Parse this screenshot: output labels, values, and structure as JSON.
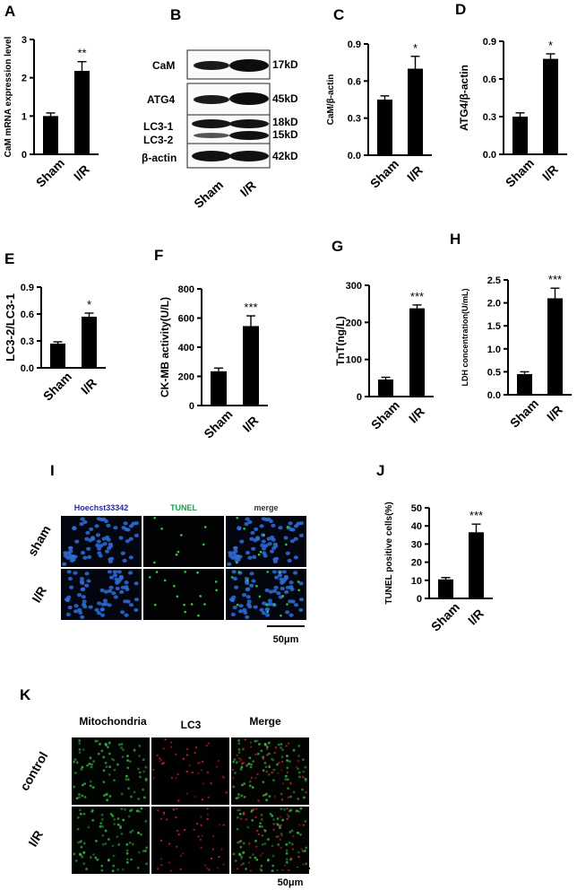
{
  "panels": {
    "A": "A",
    "B": "B",
    "C": "C",
    "D": "D",
    "E": "E",
    "F": "F",
    "G": "G",
    "H": "H",
    "I": "I",
    "J": "J",
    "K": "K"
  },
  "chart_data": [
    {
      "id": "A",
      "type": "bar",
      "categories": [
        "Sham",
        "I/R"
      ],
      "values": [
        1.0,
        2.18
      ],
      "errors": [
        0.08,
        0.24
      ],
      "ylabel": "CaM mRNA expression level",
      "ylim": [
        0,
        3
      ],
      "yticks": [
        0,
        1,
        2,
        3
      ],
      "tick_labels": [
        "0",
        "1",
        "2",
        "3"
      ],
      "significance": "**"
    },
    {
      "id": "C",
      "type": "bar",
      "categories": [
        "Sham",
        "I/R"
      ],
      "values": [
        0.45,
        0.7
      ],
      "errors": [
        0.03,
        0.1
      ],
      "ylabel": "CaM/β-actin",
      "ylim": [
        0,
        0.9
      ],
      "yticks": [
        0,
        0.3,
        0.6,
        0.9
      ],
      "tick_labels": [
        "0.0",
        "0.3",
        "0.6",
        "0.9"
      ],
      "significance": "*"
    },
    {
      "id": "D",
      "type": "bar",
      "categories": [
        "Sham",
        "I/R"
      ],
      "values": [
        0.3,
        0.76
      ],
      "errors": [
        0.03,
        0.04
      ],
      "ylabel": "ATG4/β-actin",
      "ylim": [
        0,
        0.9
      ],
      "yticks": [
        0,
        0.3,
        0.6,
        0.9
      ],
      "tick_labels": [
        "0.0",
        "0.3",
        "0.6",
        "0.9"
      ],
      "significance": "*"
    },
    {
      "id": "E",
      "type": "bar",
      "categories": [
        "Sham",
        "I/R"
      ],
      "values": [
        0.27,
        0.57
      ],
      "errors": [
        0.02,
        0.04
      ],
      "ylabel": "LC3-2/LC3-1",
      "ylim": [
        0,
        0.9
      ],
      "yticks": [
        0,
        0.3,
        0.6,
        0.9
      ],
      "tick_labels": [
        "0.0",
        "0.3",
        "0.6",
        "0.9"
      ],
      "significance": "*"
    },
    {
      "id": "F",
      "type": "bar",
      "categories": [
        "Sham",
        "I/R"
      ],
      "values": [
        235,
        545
      ],
      "errors": [
        22,
        70
      ],
      "ylabel": "CK-MB activity(U/L)",
      "ylim": [
        0,
        800
      ],
      "yticks": [
        0,
        200,
        400,
        600,
        800
      ],
      "tick_labels": [
        "0",
        "200",
        "400",
        "600",
        "800"
      ],
      "significance": "***"
    },
    {
      "id": "G",
      "type": "bar",
      "categories": [
        "Sham",
        "I/R"
      ],
      "values": [
        46,
        238
      ],
      "errors": [
        6,
        9
      ],
      "ylabel": "TnT(ng/L)",
      "ylim": [
        0,
        300
      ],
      "yticks": [
        0,
        100,
        200,
        300
      ],
      "tick_labels": [
        "0",
        "100",
        "200",
        "300"
      ],
      "significance": "***"
    },
    {
      "id": "H",
      "type": "bar",
      "categories": [
        "Sham",
        "I/R"
      ],
      "values": [
        0.45,
        2.1
      ],
      "errors": [
        0.05,
        0.22
      ],
      "ylabel": "LDH concentration(U/mL)",
      "ylim": [
        0,
        2.5
      ],
      "yticks": [
        0,
        0.5,
        1.0,
        1.5,
        2.0,
        2.5
      ],
      "tick_labels": [
        "0.0",
        "0.5",
        "1.0",
        "1.5",
        "2.0",
        "2.5"
      ],
      "significance": "***"
    },
    {
      "id": "J",
      "type": "bar",
      "categories": [
        "Sham",
        "I/R"
      ],
      "values": [
        10.5,
        36.5
      ],
      "errors": [
        1.0,
        4.5
      ],
      "ylabel": "TUNEL positive cells(%)",
      "ylim": [
        0,
        50
      ],
      "yticks": [
        0,
        10,
        20,
        30,
        40,
        50
      ],
      "tick_labels": [
        "0",
        "10",
        "20",
        "30",
        "40",
        "50"
      ],
      "significance": "***"
    }
  ],
  "blot": {
    "bands": [
      "CaM",
      "ATG4",
      "LC3-1",
      "LC3-2",
      "β-actin"
    ],
    "sizes": [
      "17kD",
      "45kD",
      "18kD",
      "15kD",
      "42kD"
    ],
    "lanes": [
      "Sham",
      "I/R"
    ]
  },
  "tunel": {
    "headers": [
      "Hoechst33342",
      "TUNEL",
      "merge"
    ],
    "rows": [
      "sham",
      "I/R"
    ],
    "scale": "50μm",
    "colors": {
      "nuclei": "#2f6fd8",
      "tunel": "#2ecc40",
      "header_blue": "#2a2aa0",
      "header_green": "#1aa34a"
    }
  },
  "mito": {
    "headers": [
      "Mitochondria",
      "LC3",
      "Merge"
    ],
    "rows": [
      "control",
      "I/R"
    ],
    "scale": "50μm",
    "colors": {
      "mito": "#39b54a",
      "lc3": "#d9262c"
    }
  }
}
